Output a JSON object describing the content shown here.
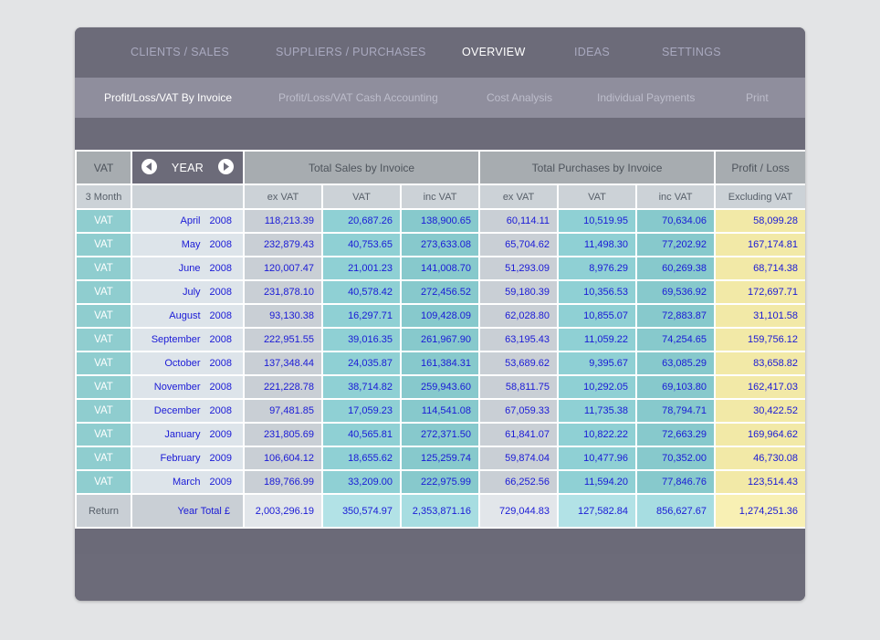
{
  "top_nav": [
    {
      "label": "CLIENTS / SALES"
    },
    {
      "label": "SUPPLIERS / PURCHASES"
    },
    {
      "label": "OVERVIEW"
    },
    {
      "label": "IDEAS"
    },
    {
      "label": "SETTINGS"
    }
  ],
  "sub_nav": [
    {
      "label": "Profit/Loss/VAT By Invoice"
    },
    {
      "label": "Profit/Loss/VAT Cash Accounting"
    },
    {
      "label": "Cost Analysis"
    },
    {
      "label": "Individual Payments"
    },
    {
      "label": "Print"
    }
  ],
  "table": {
    "header": {
      "vat": "VAT",
      "year": "YEAR",
      "sales": "Total Sales by Invoice",
      "purchases": "Total Purchases by Invoice",
      "profit": "Profit / Loss"
    },
    "subheader": {
      "period": "3 Month",
      "blank": "",
      "s_ex": "ex VAT",
      "s_vat": "VAT",
      "s_inc": "inc VAT",
      "p_ex": "ex VAT",
      "p_vat": "VAT",
      "p_inc": "inc VAT",
      "profit": "Excluding VAT"
    },
    "rows": [
      {
        "vat": "VAT",
        "month": "April",
        "year": "2008",
        "s_ex": "118,213.39",
        "s_vat": "20,687.26",
        "s_inc": "138,900.65",
        "p_ex": "60,114.11",
        "p_vat": "10,519.95",
        "p_inc": "70,634.06",
        "profit": "58,099.28"
      },
      {
        "vat": "VAT",
        "month": "May",
        "year": "2008",
        "s_ex": "232,879.43",
        "s_vat": "40,753.65",
        "s_inc": "273,633.08",
        "p_ex": "65,704.62",
        "p_vat": "11,498.30",
        "p_inc": "77,202.92",
        "profit": "167,174.81"
      },
      {
        "vat": "VAT",
        "month": "June",
        "year": "2008",
        "s_ex": "120,007.47",
        "s_vat": "21,001.23",
        "s_inc": "141,008.70",
        "p_ex": "51,293.09",
        "p_vat": "8,976.29",
        "p_inc": "60,269.38",
        "profit": "68,714.38"
      },
      {
        "vat": "VAT",
        "month": "July",
        "year": "2008",
        "s_ex": "231,878.10",
        "s_vat": "40,578.42",
        "s_inc": "272,456.52",
        "p_ex": "59,180.39",
        "p_vat": "10,356.53",
        "p_inc": "69,536.92",
        "profit": "172,697.71"
      },
      {
        "vat": "VAT",
        "month": "August",
        "year": "2008",
        "s_ex": "93,130.38",
        "s_vat": "16,297.71",
        "s_inc": "109,428.09",
        "p_ex": "62,028.80",
        "p_vat": "10,855.07",
        "p_inc": "72,883.87",
        "profit": "31,101.58"
      },
      {
        "vat": "VAT",
        "month": "September",
        "year": "2008",
        "s_ex": "222,951.55",
        "s_vat": "39,016.35",
        "s_inc": "261,967.90",
        "p_ex": "63,195.43",
        "p_vat": "11,059.22",
        "p_inc": "74,254.65",
        "profit": "159,756.12"
      },
      {
        "vat": "VAT",
        "month": "October",
        "year": "2008",
        "s_ex": "137,348.44",
        "s_vat": "24,035.87",
        "s_inc": "161,384.31",
        "p_ex": "53,689.62",
        "p_vat": "9,395.67",
        "p_inc": "63,085.29",
        "profit": "83,658.82"
      },
      {
        "vat": "VAT",
        "month": "November",
        "year": "2008",
        "s_ex": "221,228.78",
        "s_vat": "38,714.82",
        "s_inc": "259,943.60",
        "p_ex": "58,811.75",
        "p_vat": "10,292.05",
        "p_inc": "69,103.80",
        "profit": "162,417.03"
      },
      {
        "vat": "VAT",
        "month": "December",
        "year": "2008",
        "s_ex": "97,481.85",
        "s_vat": "17,059.23",
        "s_inc": "114,541.08",
        "p_ex": "67,059.33",
        "p_vat": "11,735.38",
        "p_inc": "78,794.71",
        "profit": "30,422.52"
      },
      {
        "vat": "VAT",
        "month": "January",
        "year": "2009",
        "s_ex": "231,805.69",
        "s_vat": "40,565.81",
        "s_inc": "272,371.50",
        "p_ex": "61,841.07",
        "p_vat": "10,822.22",
        "p_inc": "72,663.29",
        "profit": "169,964.62"
      },
      {
        "vat": "VAT",
        "month": "February",
        "year": "2009",
        "s_ex": "106,604.12",
        "s_vat": "18,655.62",
        "s_inc": "125,259.74",
        "p_ex": "59,874.04",
        "p_vat": "10,477.96",
        "p_inc": "70,352.00",
        "profit": "46,730.08"
      },
      {
        "vat": "VAT",
        "month": "March",
        "year": "2009",
        "s_ex": "189,766.99",
        "s_vat": "33,209.00",
        "s_inc": "222,975.99",
        "p_ex": "66,252.56",
        "p_vat": "11,594.20",
        "p_inc": "77,846.76",
        "profit": "123,514.43"
      }
    ],
    "total": {
      "label": "Return",
      "name": "Year Total  £",
      "s_ex": "2,003,296.19",
      "s_vat": "350,574.97",
      "s_inc": "2,353,871.16",
      "p_ex": "729,044.83",
      "p_vat": "127,582.84",
      "p_inc": "856,627.67",
      "profit": "1,274,251.36"
    }
  },
  "colors": {
    "nav_bg": "#6c6b79",
    "subnav_bg": "#8f8e9d",
    "vat_cell": "#8fcdcf",
    "value_text": "#1a1ad6",
    "profit_cell": "#f2e9a7"
  }
}
